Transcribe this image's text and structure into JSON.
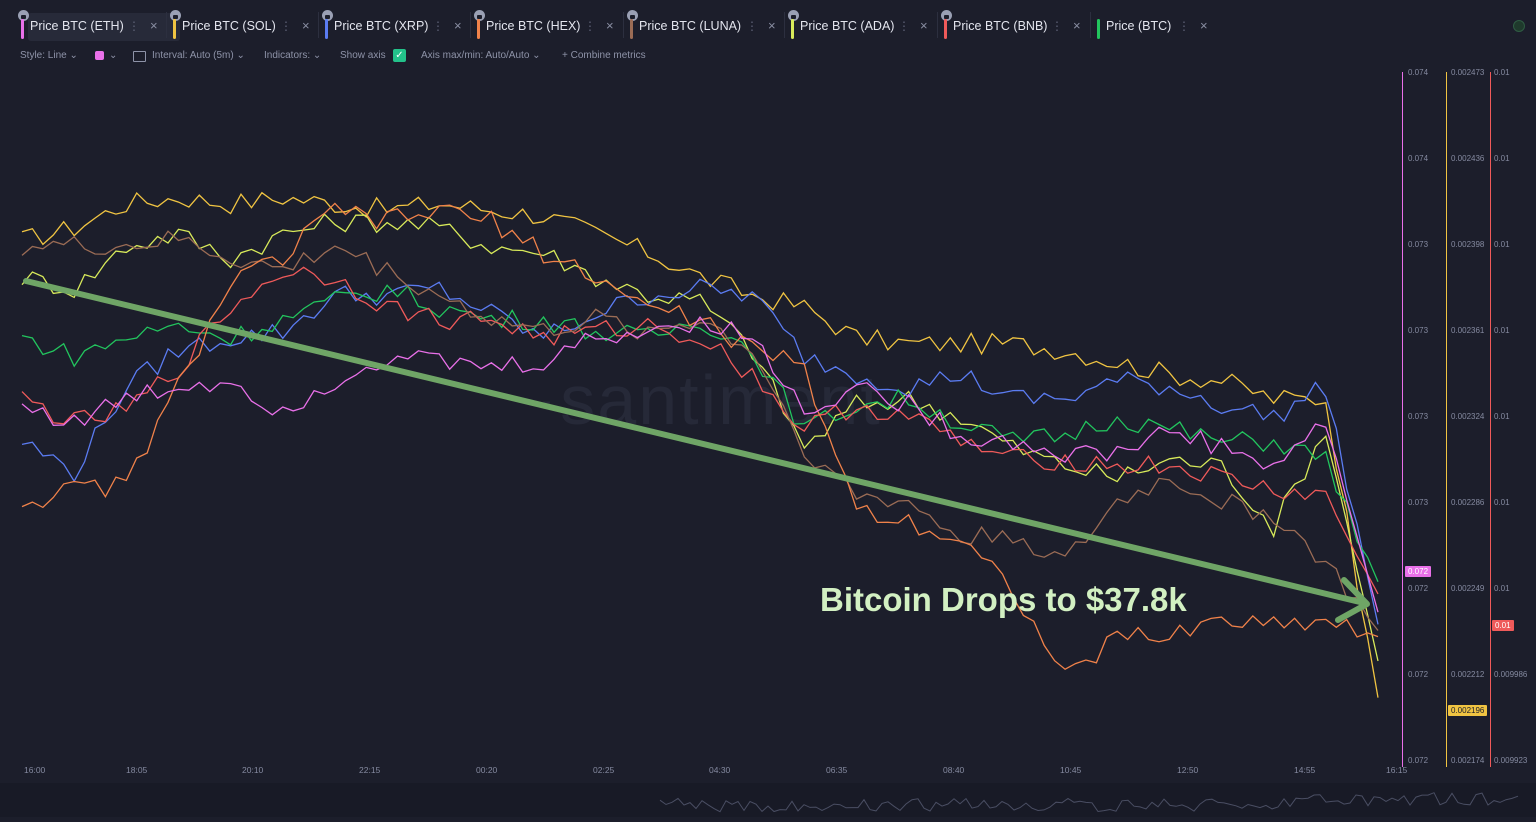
{
  "tabs": [
    {
      "label": "Price BTC (ETH)",
      "color": "#e970e9",
      "active": true
    },
    {
      "label": "Price BTC (SOL)",
      "color": "#f0c442",
      "active": false
    },
    {
      "label": "Price BTC (XRP)",
      "color": "#5b7cf2",
      "active": false
    },
    {
      "label": "Price BTC (HEX)",
      "color": "#f0824a",
      "active": false
    },
    {
      "label": "Price BTC (LUNA)",
      "color": "#9b6c55",
      "active": false
    },
    {
      "label": "Price BTC (ADA)",
      "color": "#d8ea5a",
      "active": false
    },
    {
      "label": "Price BTC (BNB)",
      "color": "#ef5a5a",
      "active": false
    },
    {
      "label": "Price (BTC)",
      "color": "#22c55e",
      "active": false
    }
  ],
  "toolbar": {
    "style": "Style: Line",
    "interval": "Interval: Auto (5m)",
    "indicators": "Indicators:",
    "show_axis": "Show axis",
    "axis_maxmin": "Axis max/min: Auto/Auto",
    "combine": "+ Combine metrics"
  },
  "icons": {
    "tab_menu": "⋮",
    "tab_close": "×",
    "dropdown": "⌄",
    "check": "✓"
  },
  "watermark": "·santiment·",
  "annotation": "Bitcoin Drops to $37.8k",
  "chart_data": {
    "type": "line",
    "x_ticks": [
      "16:00",
      "18:05",
      "20:10",
      "22:15",
      "00:20",
      "02:25",
      "04:30",
      "06:35",
      "08:40",
      "10:45",
      "12:50",
      "14:55",
      "16:15"
    ],
    "axes": [
      {
        "ticks": [
          "0.074",
          "0.074",
          "0.073",
          "0.073",
          "0.073",
          "0.073",
          "0.072",
          "0.072",
          "0.072"
        ],
        "color": "#e970e9",
        "current": "0.072"
      },
      {
        "ticks": [
          "0.002473",
          "0.002436",
          "0.002398",
          "0.002361",
          "0.002324",
          "0.002286",
          "0.002249",
          "0.002212",
          "0.002174"
        ],
        "color": "#f0c442",
        "current": "0.002196"
      },
      {
        "ticks": [
          "0.01",
          "0.01",
          "0.01",
          "0.01",
          "0.01",
          "0.01",
          "0.01",
          "0.009986",
          "0.009923"
        ],
        "color": "#ef5a5a",
        "current": "0.01"
      }
    ],
    "series": [
      {
        "name": "Price BTC (SOL)",
        "color": "#f0c442",
        "values": [
          0.79,
          0.81,
          0.85,
          0.86,
          0.85,
          0.86,
          0.85,
          0.84,
          0.85,
          0.84,
          0.83,
          0.8,
          0.77,
          0.73,
          0.7,
          0.68,
          0.63,
          0.62,
          0.62,
          0.62,
          0.61,
          0.59,
          0.57,
          0.56,
          0.53,
          0.53,
          0.04
        ]
      },
      {
        "name": "Price BTC (ADA)",
        "color": "#d8ea5a",
        "values": [
          0.73,
          0.71,
          0.78,
          0.8,
          0.76,
          0.8,
          0.82,
          0.82,
          0.81,
          0.78,
          0.77,
          0.73,
          0.7,
          0.69,
          0.61,
          0.45,
          0.52,
          0.53,
          0.5,
          0.45,
          0.42,
          0.4,
          0.43,
          0.42,
          0.32,
          0.48,
          0.1
        ]
      },
      {
        "name": "Price BTC (XRP)",
        "color": "#5b7cf2",
        "values": [
          0.46,
          0.41,
          0.55,
          0.61,
          0.63,
          0.64,
          0.7,
          0.7,
          0.71,
          0.67,
          0.63,
          0.67,
          0.7,
          0.71,
          0.7,
          0.6,
          0.57,
          0.55,
          0.57,
          0.53,
          0.53,
          0.56,
          0.55,
          0.52,
          0.5,
          0.55,
          0.16
        ]
      },
      {
        "name": "Price (BTC)",
        "color": "#22c55e",
        "values": [
          0.63,
          0.6,
          0.63,
          0.65,
          0.63,
          0.66,
          0.69,
          0.71,
          0.68,
          0.66,
          0.66,
          0.64,
          0.63,
          0.66,
          0.61,
          0.48,
          0.52,
          0.53,
          0.49,
          0.46,
          0.47,
          0.5,
          0.48,
          0.46,
          0.46,
          0.43,
          0.23
        ]
      },
      {
        "name": "Price BTC (BNB)",
        "color": "#ef5a5a",
        "values": [
          0.53,
          0.49,
          0.51,
          0.58,
          0.68,
          0.74,
          0.73,
          0.68,
          0.66,
          0.66,
          0.63,
          0.64,
          0.65,
          0.63,
          0.57,
          0.48,
          0.52,
          0.5,
          0.46,
          0.43,
          0.43,
          0.42,
          0.42,
          0.4,
          0.38,
          0.37,
          0.21
        ]
      },
      {
        "name": "Price BTC (LUNA)",
        "color": "#9b6c55",
        "values": [
          0.78,
          0.78,
          0.78,
          0.79,
          0.76,
          0.74,
          0.78,
          0.74,
          0.7,
          0.66,
          0.64,
          0.66,
          0.64,
          0.66,
          0.61,
          0.45,
          0.37,
          0.36,
          0.3,
          0.31,
          0.26,
          0.36,
          0.4,
          0.36,
          0.34,
          0.26,
          0.15
        ]
      },
      {
        "name": "Price BTC (HEX)",
        "color": "#f0824a",
        "values": [
          0.36,
          0.38,
          0.39,
          0.55,
          0.72,
          0.76,
          0.84,
          0.82,
          0.84,
          0.82,
          0.77,
          0.73,
          0.68,
          0.66,
          0.61,
          0.58,
          0.35,
          0.33,
          0.3,
          0.22,
          0.07,
          0.14,
          0.14,
          0.17,
          0.16,
          0.17,
          0.14
        ]
      },
      {
        "name": "Price BTC (ETH)",
        "color": "#e970e9",
        "values": [
          0.52,
          0.49,
          0.53,
          0.55,
          0.56,
          0.51,
          0.56,
          0.6,
          0.59,
          0.58,
          0.59,
          0.63,
          0.64,
          0.66,
          0.63,
          0.51,
          0.55,
          0.52,
          0.47,
          0.46,
          0.44,
          0.44,
          0.48,
          0.45,
          0.42,
          0.49,
          0.18
        ]
      }
    ],
    "trend_arrow": {
      "label": "Bitcoin Drops to $37.8k",
      "color": "#6fa566"
    }
  }
}
